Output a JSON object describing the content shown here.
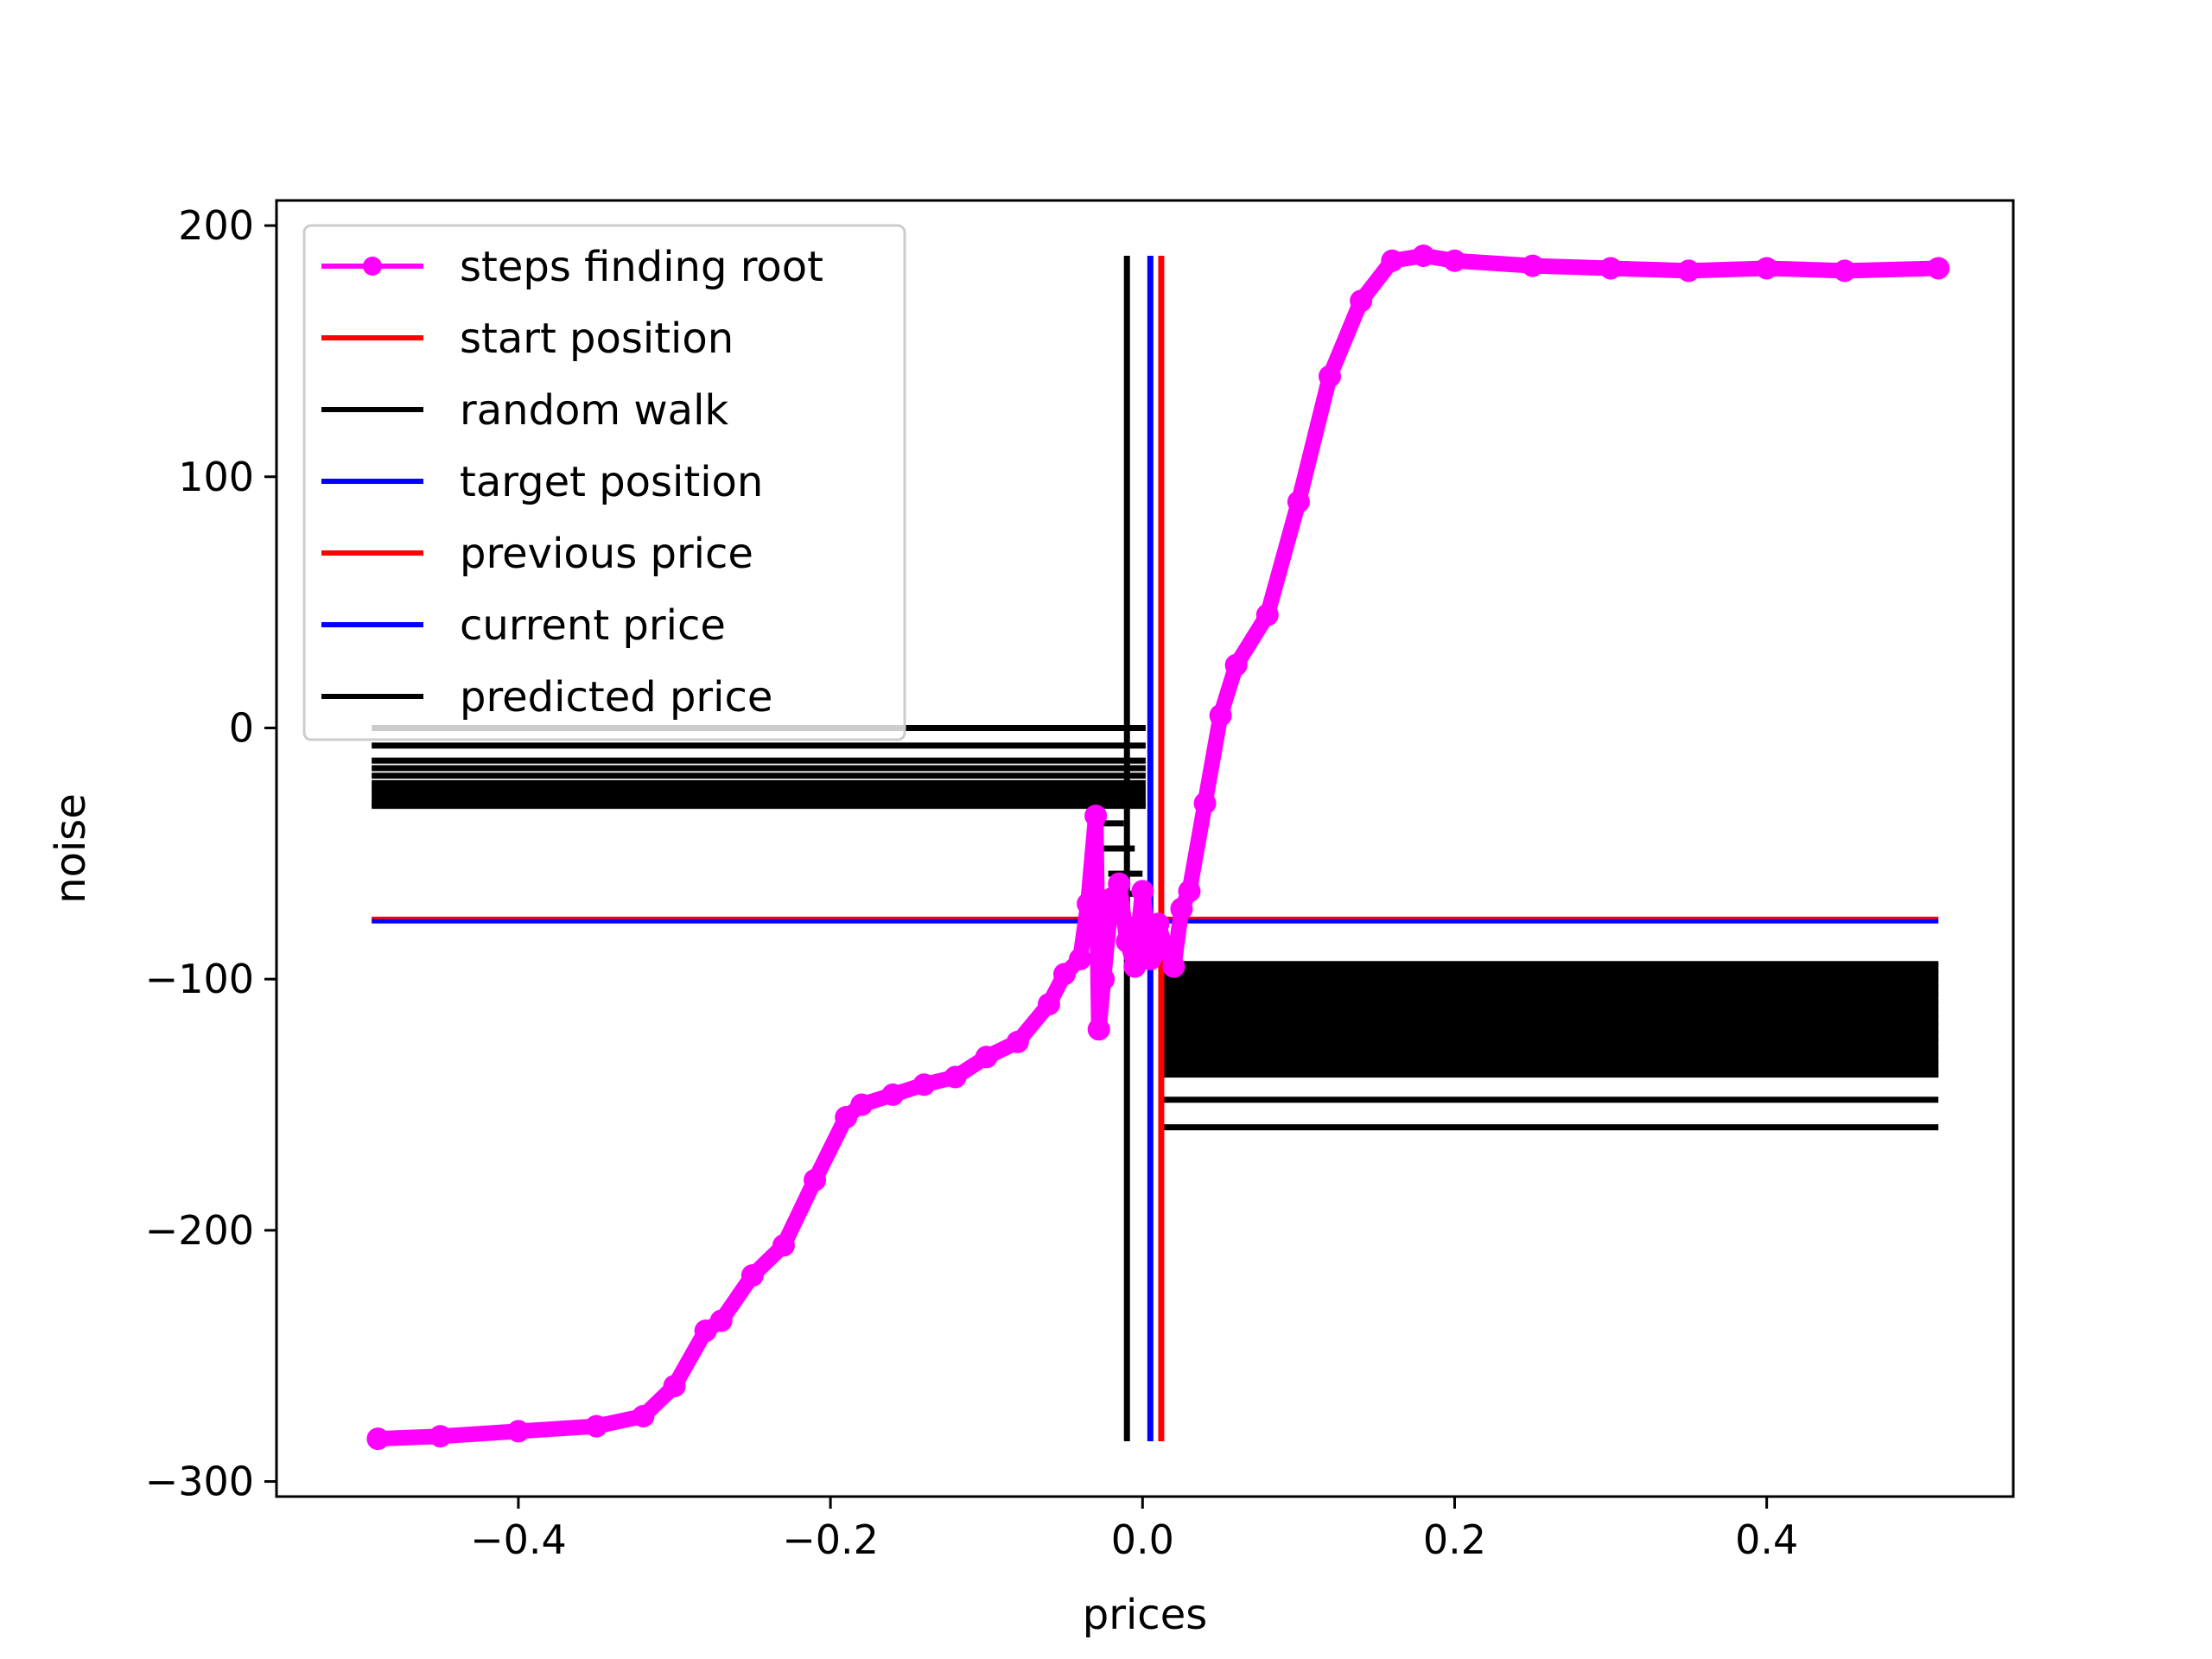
{
  "chart_data": {
    "type": "line",
    "title": "",
    "xlabel": "prices",
    "ylabel": "noise",
    "xlim": [
      -0.555,
      0.558
    ],
    "ylim": [
      -306,
      210
    ],
    "grid": false,
    "legend_position": "upper left",
    "x_ticks": [
      {
        "value": -0.4,
        "label": "−0.4"
      },
      {
        "value": -0.2,
        "label": "−0.2"
      },
      {
        "value": 0.0,
        "label": "0.0"
      },
      {
        "value": 0.2,
        "label": "0.2"
      },
      {
        "value": 0.4,
        "label": "0.4"
      }
    ],
    "y_ticks": [
      {
        "value": 200,
        "label": "200"
      },
      {
        "value": 100,
        "label": "100"
      },
      {
        "value": 0,
        "label": "0"
      },
      {
        "value": -100,
        "label": "−100"
      },
      {
        "value": -200,
        "label": "−200"
      },
      {
        "value": -300,
        "label": "−300"
      }
    ],
    "legend": [
      {
        "label": "steps finding root",
        "color": "#ff00ff",
        "marker": "circle"
      },
      {
        "label": "start position",
        "color": "#ff0000"
      },
      {
        "label": "random walk",
        "color": "#000000"
      },
      {
        "label": "target position",
        "color": "#0000ff"
      },
      {
        "label": "previous price",
        "color": "#ff0000"
      },
      {
        "label": "current price",
        "color": "#0000ff"
      },
      {
        "label": "predicted price",
        "color": "#000000"
      }
    ],
    "series": [
      {
        "name": "steps finding root",
        "color": "#ff00ff",
        "x": [
          -0.49,
          -0.45,
          -0.4,
          -0.35,
          -0.32,
          -0.3,
          -0.28,
          -0.27,
          -0.25,
          -0.23,
          -0.21,
          -0.19,
          -0.18,
          -0.16,
          -0.14,
          -0.12,
          -0.1,
          -0.08,
          -0.06,
          -0.05,
          -0.04,
          -0.035,
          -0.03,
          -0.028,
          -0.025,
          -0.02,
          -0.015,
          -0.01,
          -0.005,
          0.0,
          0.005,
          0.01,
          0.015,
          0.02,
          0.025,
          0.03,
          0.04,
          0.05,
          0.06,
          0.08,
          0.1,
          0.12,
          0.14,
          0.16,
          0.18,
          0.2,
          0.25,
          0.3,
          0.35,
          0.4,
          0.45,
          0.51
        ],
        "y": [
          -283,
          -282,
          -280,
          -278,
          -274,
          -262,
          -240,
          -236,
          -218,
          -206,
          -180,
          -155,
          -150,
          -146,
          -142,
          -139,
          -131,
          -125,
          -110,
          -98,
          -92,
          -70,
          -35,
          -120,
          -100,
          -68,
          -62,
          -85,
          -95,
          -65,
          -92,
          -78,
          -88,
          -95,
          -72,
          -65,
          -30,
          5,
          25,
          45,
          90,
          140,
          170,
          186,
          188,
          186,
          184,
          183,
          182,
          183,
          182,
          183
        ]
      },
      {
        "name": "start position",
        "color": "#ff0000",
        "kind": "vertical",
        "x": 0.012,
        "y_range": [
          -284,
          188
        ]
      },
      {
        "name": "random walk",
        "color": "#000000",
        "kind": "vertical",
        "x": -0.01,
        "y_range": [
          -284,
          188
        ]
      },
      {
        "name": "target position",
        "color": "#0000ff",
        "kind": "vertical",
        "x": 0.005,
        "y_range": [
          -284,
          188
        ]
      },
      {
        "name": "previous price",
        "color": "#ff0000",
        "kind": "horizontal",
        "y": -76,
        "x_range": [
          -0.494,
          0.51
        ]
      },
      {
        "name": "current price",
        "color": "#0000ff",
        "kind": "horizontal",
        "y": -77,
        "x_range": [
          -0.494,
          0.51
        ]
      },
      {
        "name": "predicted price",
        "color": "#000000",
        "kind": "horizontal_bands",
        "left_x_range": [
          -0.494,
          0.002
        ],
        "left_y_values": [
          0,
          -7,
          -13,
          -16,
          -19,
          -22,
          -24,
          -26,
          -28,
          -30,
          -31
        ],
        "right_x_range": [
          0.012,
          0.51
        ],
        "right_y_values": [
          -94,
          -97,
          -100,
          -103,
          -106,
          -109,
          -112,
          -115,
          -118,
          -121,
          -124,
          -127,
          -130,
          -133,
          -136,
          -138,
          -148,
          -159
        ]
      }
    ]
  }
}
